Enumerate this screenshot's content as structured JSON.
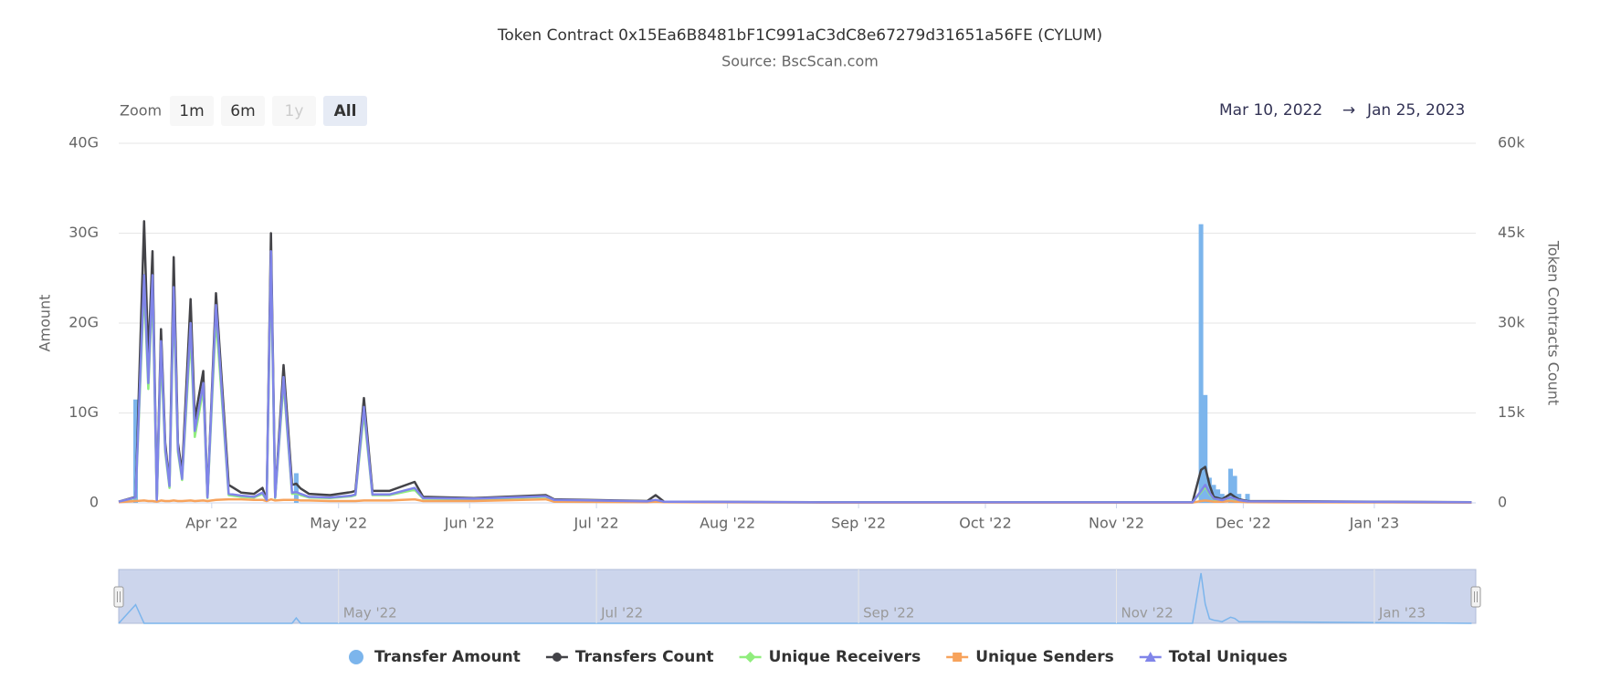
{
  "chart_data": {
    "type": "stock",
    "title": "Token Contract 0x15Ea6B8481bF1C991aC3dC8e67279d31651a56FE (CYLUM)",
    "subtitle": "Source: BscScan.com",
    "range_selector": {
      "label": "Zoom",
      "buttons": [
        "1m",
        "6m",
        "1y",
        "All"
      ],
      "selected": 3,
      "disabled": [
        2
      ],
      "from": "Mar 10, 2022",
      "arrow": "→",
      "to": "Jan 25, 2023"
    },
    "ylabel": "Amount",
    "y2label": "Token Contracts Count",
    "xlim": [
      "2022-03-10",
      "2023-01-25"
    ],
    "xticks": [
      {
        "value": "2022-04-01",
        "label": "Apr '22"
      },
      {
        "value": "2022-05-01",
        "label": "May '22"
      },
      {
        "value": "2022-06-01",
        "label": "Jun '22"
      },
      {
        "value": "2022-07-01",
        "label": "Jul '22"
      },
      {
        "value": "2022-08-01",
        "label": "Aug '22"
      },
      {
        "value": "2022-09-01",
        "label": "Sep '22"
      },
      {
        "value": "2022-10-01",
        "label": "Oct '22"
      },
      {
        "value": "2022-11-01",
        "label": "Nov '22"
      },
      {
        "value": "2022-12-01",
        "label": "Dec '22"
      },
      {
        "value": "2023-01-01",
        "label": "Jan '23"
      }
    ],
    "navigator_ticks": [
      {
        "value": "2022-05-01",
        "label": "May '22"
      },
      {
        "value": "2022-07-01",
        "label": "Jul '22"
      },
      {
        "value": "2022-09-01",
        "label": "Sep '22"
      },
      {
        "value": "2022-11-01",
        "label": "Nov '22"
      },
      {
        "value": "2023-01-01",
        "label": "Jan '23"
      }
    ],
    "ylim": [
      0,
      40000000000
    ],
    "yticks": [
      0,
      {
        "value": 10000000000,
        "label": "10G"
      },
      {
        "value": 20000000000,
        "label": "20G"
      },
      {
        "value": 30000000000,
        "label": "30G"
      },
      {
        "value": 40000000000,
        "label": "40G"
      }
    ],
    "y2lim": [
      0,
      60000
    ],
    "y2ticks": [
      0,
      {
        "value": 15000,
        "label": "15k"
      },
      {
        "value": 30000,
        "label": "30k"
      },
      {
        "value": 45000,
        "label": "45k"
      },
      {
        "value": 60000,
        "label": "60k"
      }
    ],
    "grid": true,
    "legend": "bottom",
    "x": [
      "2022-03-10",
      "2022-03-14",
      "2022-03-16",
      "2022-03-17",
      "2022-03-18",
      "2022-03-19",
      "2022-03-20",
      "2022-03-21",
      "2022-03-22",
      "2022-03-23",
      "2022-03-24",
      "2022-03-25",
      "2022-03-27",
      "2022-03-28",
      "2022-03-30",
      "2022-03-31",
      "2022-04-02",
      "2022-04-05",
      "2022-04-08",
      "2022-04-11",
      "2022-04-13",
      "2022-04-14",
      "2022-04-15",
      "2022-04-16",
      "2022-04-18",
      "2022-04-20",
      "2022-04-21",
      "2022-04-22",
      "2022-04-24",
      "2022-04-29",
      "2022-05-04",
      "2022-05-05",
      "2022-05-07",
      "2022-05-09",
      "2022-05-13",
      "2022-05-19",
      "2022-05-21",
      "2022-06-02",
      "2022-06-19",
      "2022-06-21",
      "2022-07-13",
      "2022-07-15",
      "2022-07-17",
      "2022-08-23",
      "2022-11-19",
      "2022-11-21",
      "2022-11-22",
      "2022-11-23",
      "2022-11-24",
      "2022-11-25",
      "2022-11-26",
      "2022-11-28",
      "2022-11-29",
      "2022-11-30",
      "2022-12-02",
      "2023-01-24"
    ],
    "series": [
      {
        "name": "Transfer Amount",
        "type": "column",
        "marker": "circle",
        "color": "#7cb5ec",
        "values": [
          0,
          11500000000,
          0,
          0,
          0,
          0,
          0,
          0,
          0,
          0,
          0,
          0,
          0,
          0,
          0,
          0,
          0,
          0,
          0,
          0,
          0,
          0,
          0,
          0,
          0,
          0,
          3300000000,
          0,
          0,
          0,
          0,
          0,
          0,
          0,
          0,
          0,
          0,
          0,
          0,
          0,
          0,
          0,
          0,
          0,
          0,
          31000000000,
          12000000000,
          2800000000,
          2000000000,
          1500000000,
          1000000000,
          3800000000,
          3000000000,
          1000000000,
          1000000000,
          0
        ]
      },
      {
        "name": "Transfers Count",
        "type": "line",
        "axis": "y2",
        "marker": "circle",
        "color": "#434348",
        "values": [
          200,
          1000,
          47000,
          24000,
          42000,
          500,
          29000,
          10000,
          3000,
          41000,
          10000,
          5000,
          34000,
          14000,
          22000,
          1000,
          35000,
          3000,
          1700,
          1500,
          2500,
          500,
          45000,
          1000,
          23000,
          3000,
          3200,
          2400,
          1500,
          1300,
          1800,
          2000,
          17500,
          2000,
          2000,
          3500,
          1000,
          800,
          1300,
          600,
          300,
          1300,
          200,
          100,
          100,
          5500,
          6000,
          3000,
          1000,
          800,
          600,
          1500,
          1000,
          600,
          300,
          100
        ]
      },
      {
        "name": "Unique Receivers",
        "type": "line",
        "axis": "y2",
        "marker": "diamond",
        "color": "#90ed7d",
        "values": [
          150,
          800,
          36000,
          19000,
          36000,
          400,
          25000,
          8500,
          2500,
          34000,
          8500,
          3800,
          28000,
          11000,
          19000,
          800,
          31000,
          1300,
          1000,
          900,
          1500,
          400,
          40000,
          800,
          20000,
          1500,
          1600,
          1300,
          900,
          800,
          1100,
          1300,
          15000,
          1300,
          1300,
          2200,
          700,
          600,
          1000,
          400,
          200,
          400,
          150,
          80,
          80,
          1800,
          2700,
          1500,
          600,
          500,
          400,
          800,
          600,
          400,
          200,
          80
        ]
      },
      {
        "name": "Unique Senders",
        "type": "line",
        "axis": "y2",
        "marker": "square",
        "color": "#f7a35c",
        "values": [
          100,
          300,
          400,
          300,
          300,
          200,
          400,
          300,
          300,
          400,
          300,
          300,
          400,
          300,
          400,
          300,
          500,
          600,
          600,
          500,
          500,
          300,
          600,
          400,
          500,
          500,
          500,
          400,
          400,
          300,
          300,
          300,
          400,
          400,
          400,
          600,
          300,
          300,
          600,
          200,
          100,
          200,
          100,
          50,
          50,
          300,
          400,
          300,
          200,
          200,
          200,
          300,
          200,
          200,
          100,
          50
        ]
      },
      {
        "name": "Total Uniques",
        "type": "line",
        "axis": "y2",
        "marker": "triangle",
        "color": "#8085e9",
        "values": [
          200,
          900,
          38000,
          20000,
          38000,
          500,
          27000,
          9000,
          2800,
          36000,
          9000,
          4000,
          30000,
          12000,
          20000,
          900,
          33000,
          1500,
          1200,
          1000,
          1700,
          500,
          42000,
          900,
          21000,
          1700,
          1800,
          1500,
          1000,
          900,
          1200,
          1400,
          16000,
          1400,
          1400,
          2500,
          800,
          700,
          1100,
          500,
          250,
          500,
          180,
          90,
          90,
          2000,
          3000,
          1700,
          700,
          600,
          450,
          900,
          700,
          450,
          250,
          90
        ]
      }
    ]
  }
}
